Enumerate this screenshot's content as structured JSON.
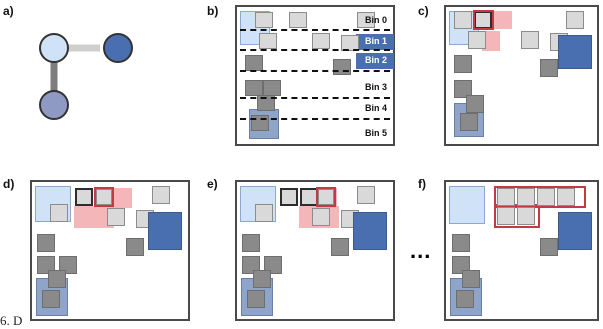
{
  "panels": {
    "a": "a)",
    "b": "b)",
    "c": "c)",
    "d": "d)",
    "e": "e)",
    "f": "f)"
  },
  "bins": [
    "Bin 0",
    "Bin 1",
    "Bin 2",
    "Bin 3",
    "Bin 4",
    "Bin 5"
  ],
  "ellipsis": "...",
  "caption": "6. D",
  "colors": {
    "node_light": "#cfe2f7",
    "node_dark": "#4a6fb0",
    "node_mid": "#8f9ac4",
    "edge": "#c8c8c8",
    "selection": "#c23b42"
  }
}
